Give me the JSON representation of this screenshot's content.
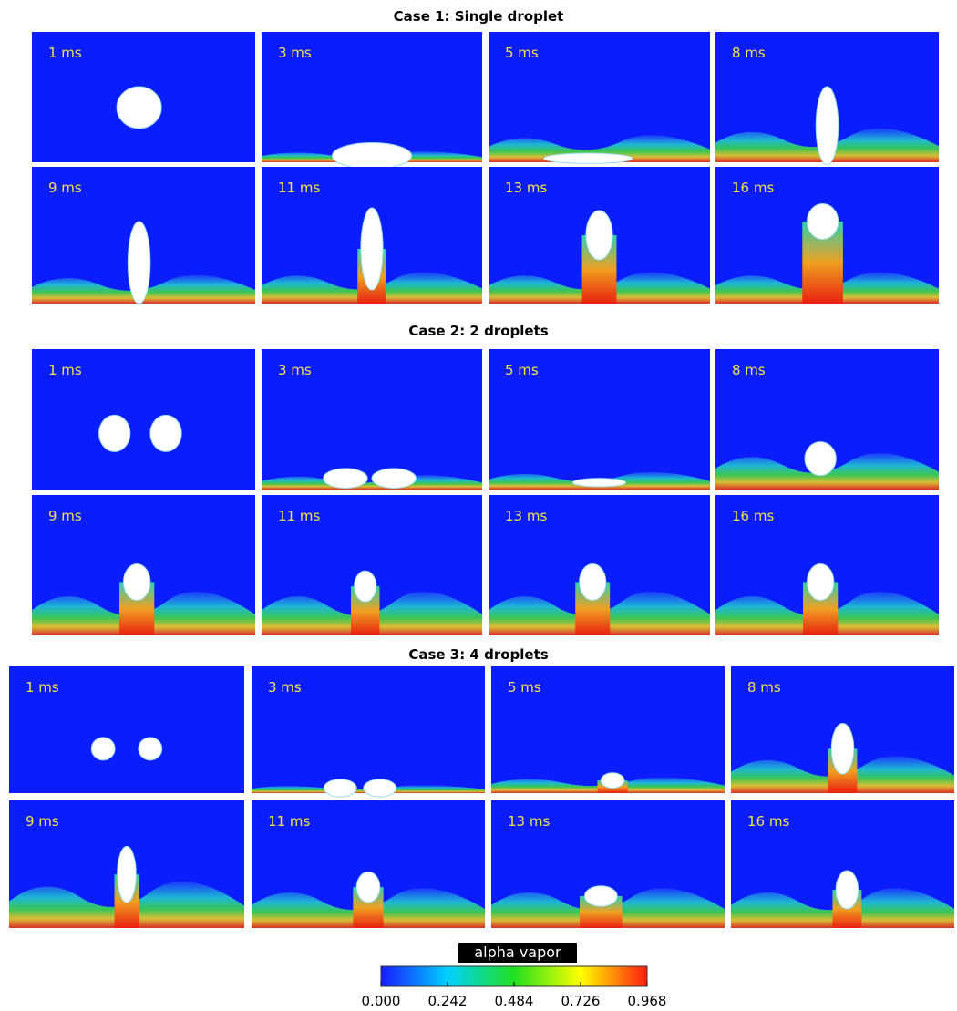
{
  "cases": [
    {
      "title": "Case 1: Single droplet",
      "panels": [
        "1 ms",
        "3 ms",
        "5 ms",
        "8 ms",
        "9 ms",
        "11 ms",
        "13 ms",
        "16 ms"
      ]
    },
    {
      "title": "Case 2: 2 droplets",
      "panels": [
        "1 ms",
        "3 ms",
        "5 ms",
        "8 ms",
        "9 ms",
        "11 ms",
        "13 ms",
        "16 ms"
      ]
    },
    {
      "title": "Case 3: 4 droplets",
      "panels": [
        "1 ms",
        "3 ms",
        "5 ms",
        "8 ms",
        "9 ms",
        "11 ms",
        "13 ms",
        "16 ms"
      ]
    }
  ],
  "colorbar": {
    "title": "alpha vapor",
    "lim": [
      0,
      0.968
    ],
    "ticks": [
      {
        "value": 0,
        "label": "0.000"
      },
      {
        "value": 0.242,
        "label": "0.242"
      },
      {
        "value": 0.484,
        "label": "0.484"
      },
      {
        "value": 0.726,
        "label": "0.726"
      },
      {
        "value": 0.968,
        "label": "0.968"
      }
    ]
  }
}
